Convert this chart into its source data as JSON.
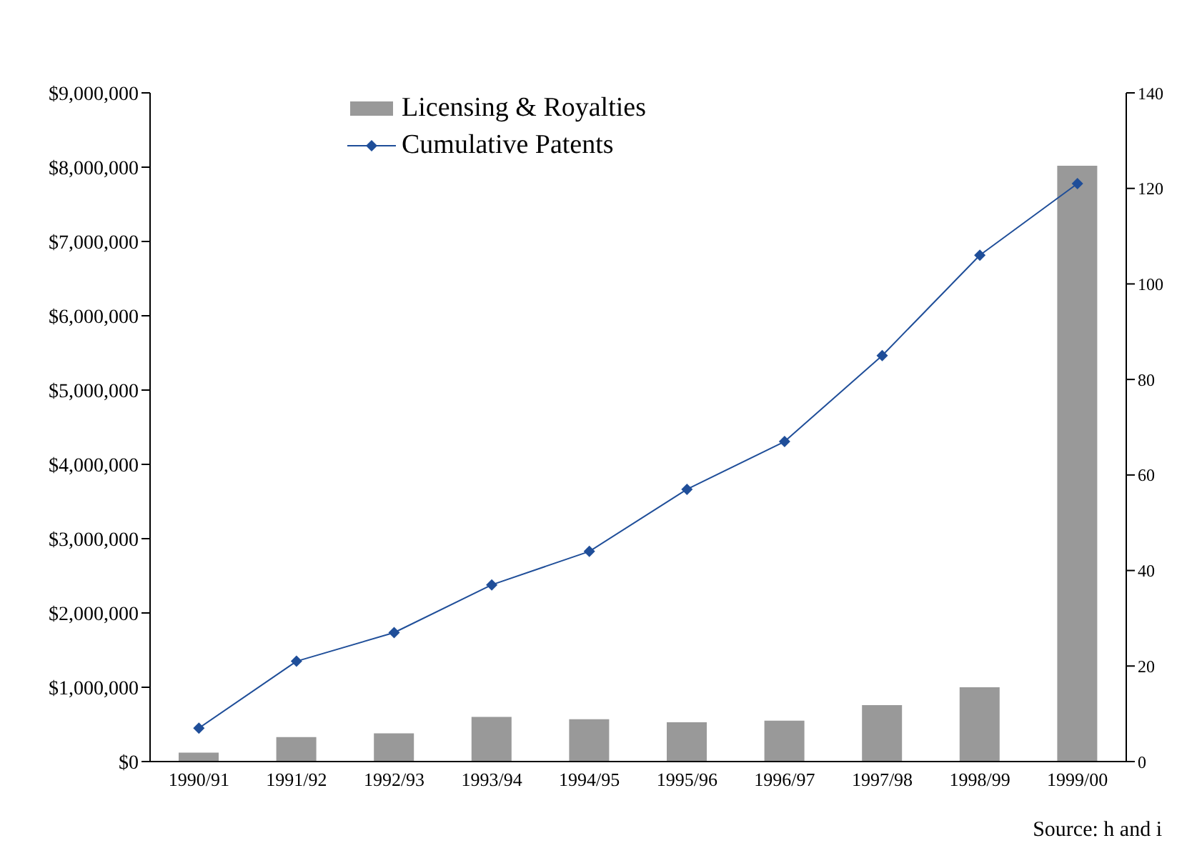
{
  "chart_data": {
    "type": "bar",
    "categories": [
      "1990/91",
      "1991/92",
      "1992/93",
      "1993/94",
      "1994/95",
      "1995/96",
      "1996/97",
      "1997/98",
      "1998/99",
      "1999/00"
    ],
    "series": [
      {
        "name": "Licensing & Royalties",
        "color": "#999999",
        "values": [
          120000,
          330000,
          380000,
          600000,
          570000,
          530000,
          550000,
          760000,
          1000000,
          8020000
        ]
      },
      {
        "name": "Cumulative Patents",
        "type": "line",
        "axis": "y2",
        "color": "#1f4e99",
        "values": [
          7,
          21,
          27,
          37,
          44,
          57,
          67,
          85,
          106,
          121
        ]
      }
    ],
    "ylim": [
      0,
      9000000
    ],
    "yticks": [
      {
        "value": 0,
        "label": "$0"
      },
      {
        "value": 1000000,
        "label": "$1,000,000"
      },
      {
        "value": 2000000,
        "label": "$2,000,000"
      },
      {
        "value": 3000000,
        "label": "$3,000,000"
      },
      {
        "value": 4000000,
        "label": "$4,000,000"
      },
      {
        "value": 5000000,
        "label": "$5,000,000"
      },
      {
        "value": 6000000,
        "label": "$6,000,000"
      },
      {
        "value": 7000000,
        "label": "$7,000,000"
      },
      {
        "value": 8000000,
        "label": "$8,000,000"
      },
      {
        "value": 9000000,
        "label": "$9,000,000"
      }
    ],
    "y2lim": [
      0,
      140
    ],
    "y2ticks": [
      0,
      20,
      40,
      60,
      80,
      100,
      120,
      140
    ],
    "grid": false,
    "legend": "top",
    "marker": "diamond",
    "line_style": "solid",
    "annotations": [
      "Source: h and i"
    ]
  }
}
